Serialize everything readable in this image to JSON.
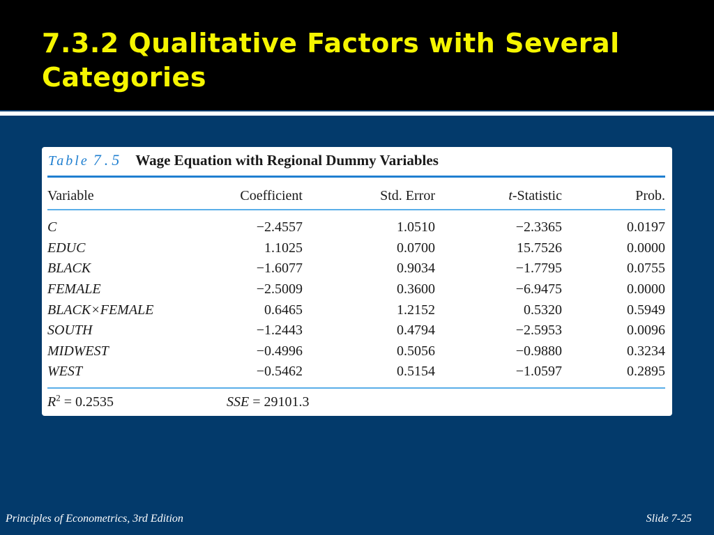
{
  "slide": {
    "title": "7.3.2 Qualitative Factors with Several Categories",
    "footer_left": "Principles of Econometrics, 3rd Edition",
    "footer_right": "Slide 7-25"
  },
  "table": {
    "label": "Table",
    "number": "7.5",
    "caption": "Wage Equation with Regional Dummy Variables",
    "columns": {
      "variable": "Variable",
      "coefficient": "Coefficient",
      "std_error": "Std. Error",
      "t_stat_prefix": "t",
      "t_stat_suffix": "-Statistic",
      "prob": "Prob."
    },
    "rows": [
      {
        "variable": "C",
        "coefficient": "−2.4557",
        "std_error": "1.0510",
        "t_statistic": "−2.3365",
        "prob": "0.0197"
      },
      {
        "variable": "EDUC",
        "coefficient": "1.1025",
        "std_error": "0.0700",
        "t_statistic": "15.7526",
        "prob": "0.0000"
      },
      {
        "variable": "BLACK",
        "coefficient": "−1.6077",
        "std_error": "0.9034",
        "t_statistic": "−1.7795",
        "prob": "0.0755"
      },
      {
        "variable": "FEMALE",
        "coefficient": "−2.5009",
        "std_error": "0.3600",
        "t_statistic": "−6.9475",
        "prob": "0.0000"
      },
      {
        "variable": "BLACK×FEMALE",
        "coefficient": "0.6465",
        "std_error": "1.2152",
        "t_statistic": "0.5320",
        "prob": "0.5949"
      },
      {
        "variable": "SOUTH",
        "coefficient": "−1.2443",
        "std_error": "0.4794",
        "t_statistic": "−2.5953",
        "prob": "0.0096"
      },
      {
        "variable": "MIDWEST",
        "coefficient": "−0.4996",
        "std_error": "0.5056",
        "t_statistic": "−0.9880",
        "prob": "0.3234"
      },
      {
        "variable": "WEST",
        "coefficient": "−0.5462",
        "std_error": "0.5154",
        "t_statistic": "−1.0597",
        "prob": "0.2895"
      }
    ],
    "stats": {
      "r2_symbol": "R",
      "r2_exponent": "2",
      "r2_value": " = 0.2535",
      "sse_symbol": "SSE",
      "sse_value": " = 29101.3"
    }
  },
  "colors": {
    "background": "#033a6b",
    "title_bar": "#000000",
    "title_text": "#f5f500",
    "accent_blue": "#1f7fd0"
  }
}
